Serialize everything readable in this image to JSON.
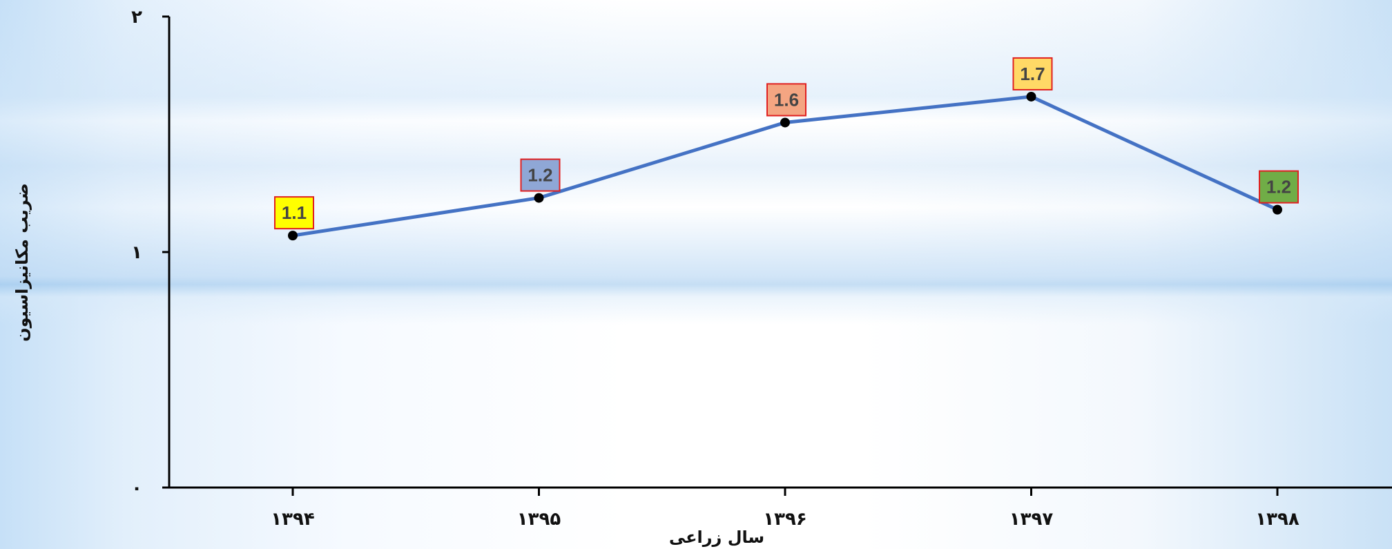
{
  "chart_data": {
    "type": "line",
    "categories": [
      "۱۳۹۴",
      "۱۳۹۵",
      "۱۳۹۶",
      "۱۳۹۷",
      "۱۳۹۸"
    ],
    "series": [
      {
        "values": [
          1.07,
          1.23,
          1.55,
          1.66,
          1.18
        ],
        "data_labels": [
          "1.1",
          "1.2",
          "1.6",
          "1.7",
          "1.2"
        ],
        "label_colors": [
          "#ffff00",
          "#8fa7d6",
          "#f4a582",
          "#ffd966",
          "#70ad47"
        ],
        "color": "#4472c4"
      }
    ],
    "xlabel": "سال زراعی",
    "ylabel": "ضریب مکانیزاسیون",
    "ylim": [
      0,
      2
    ],
    "yticks": [
      {
        "value": 0,
        "label": "۰"
      },
      {
        "value": 1,
        "label": "۱"
      },
      {
        "value": 2,
        "label": "۲"
      }
    ],
    "grid": false,
    "legend": "none",
    "marker_color": "#000000",
    "label_border_color": "#e02020"
  }
}
